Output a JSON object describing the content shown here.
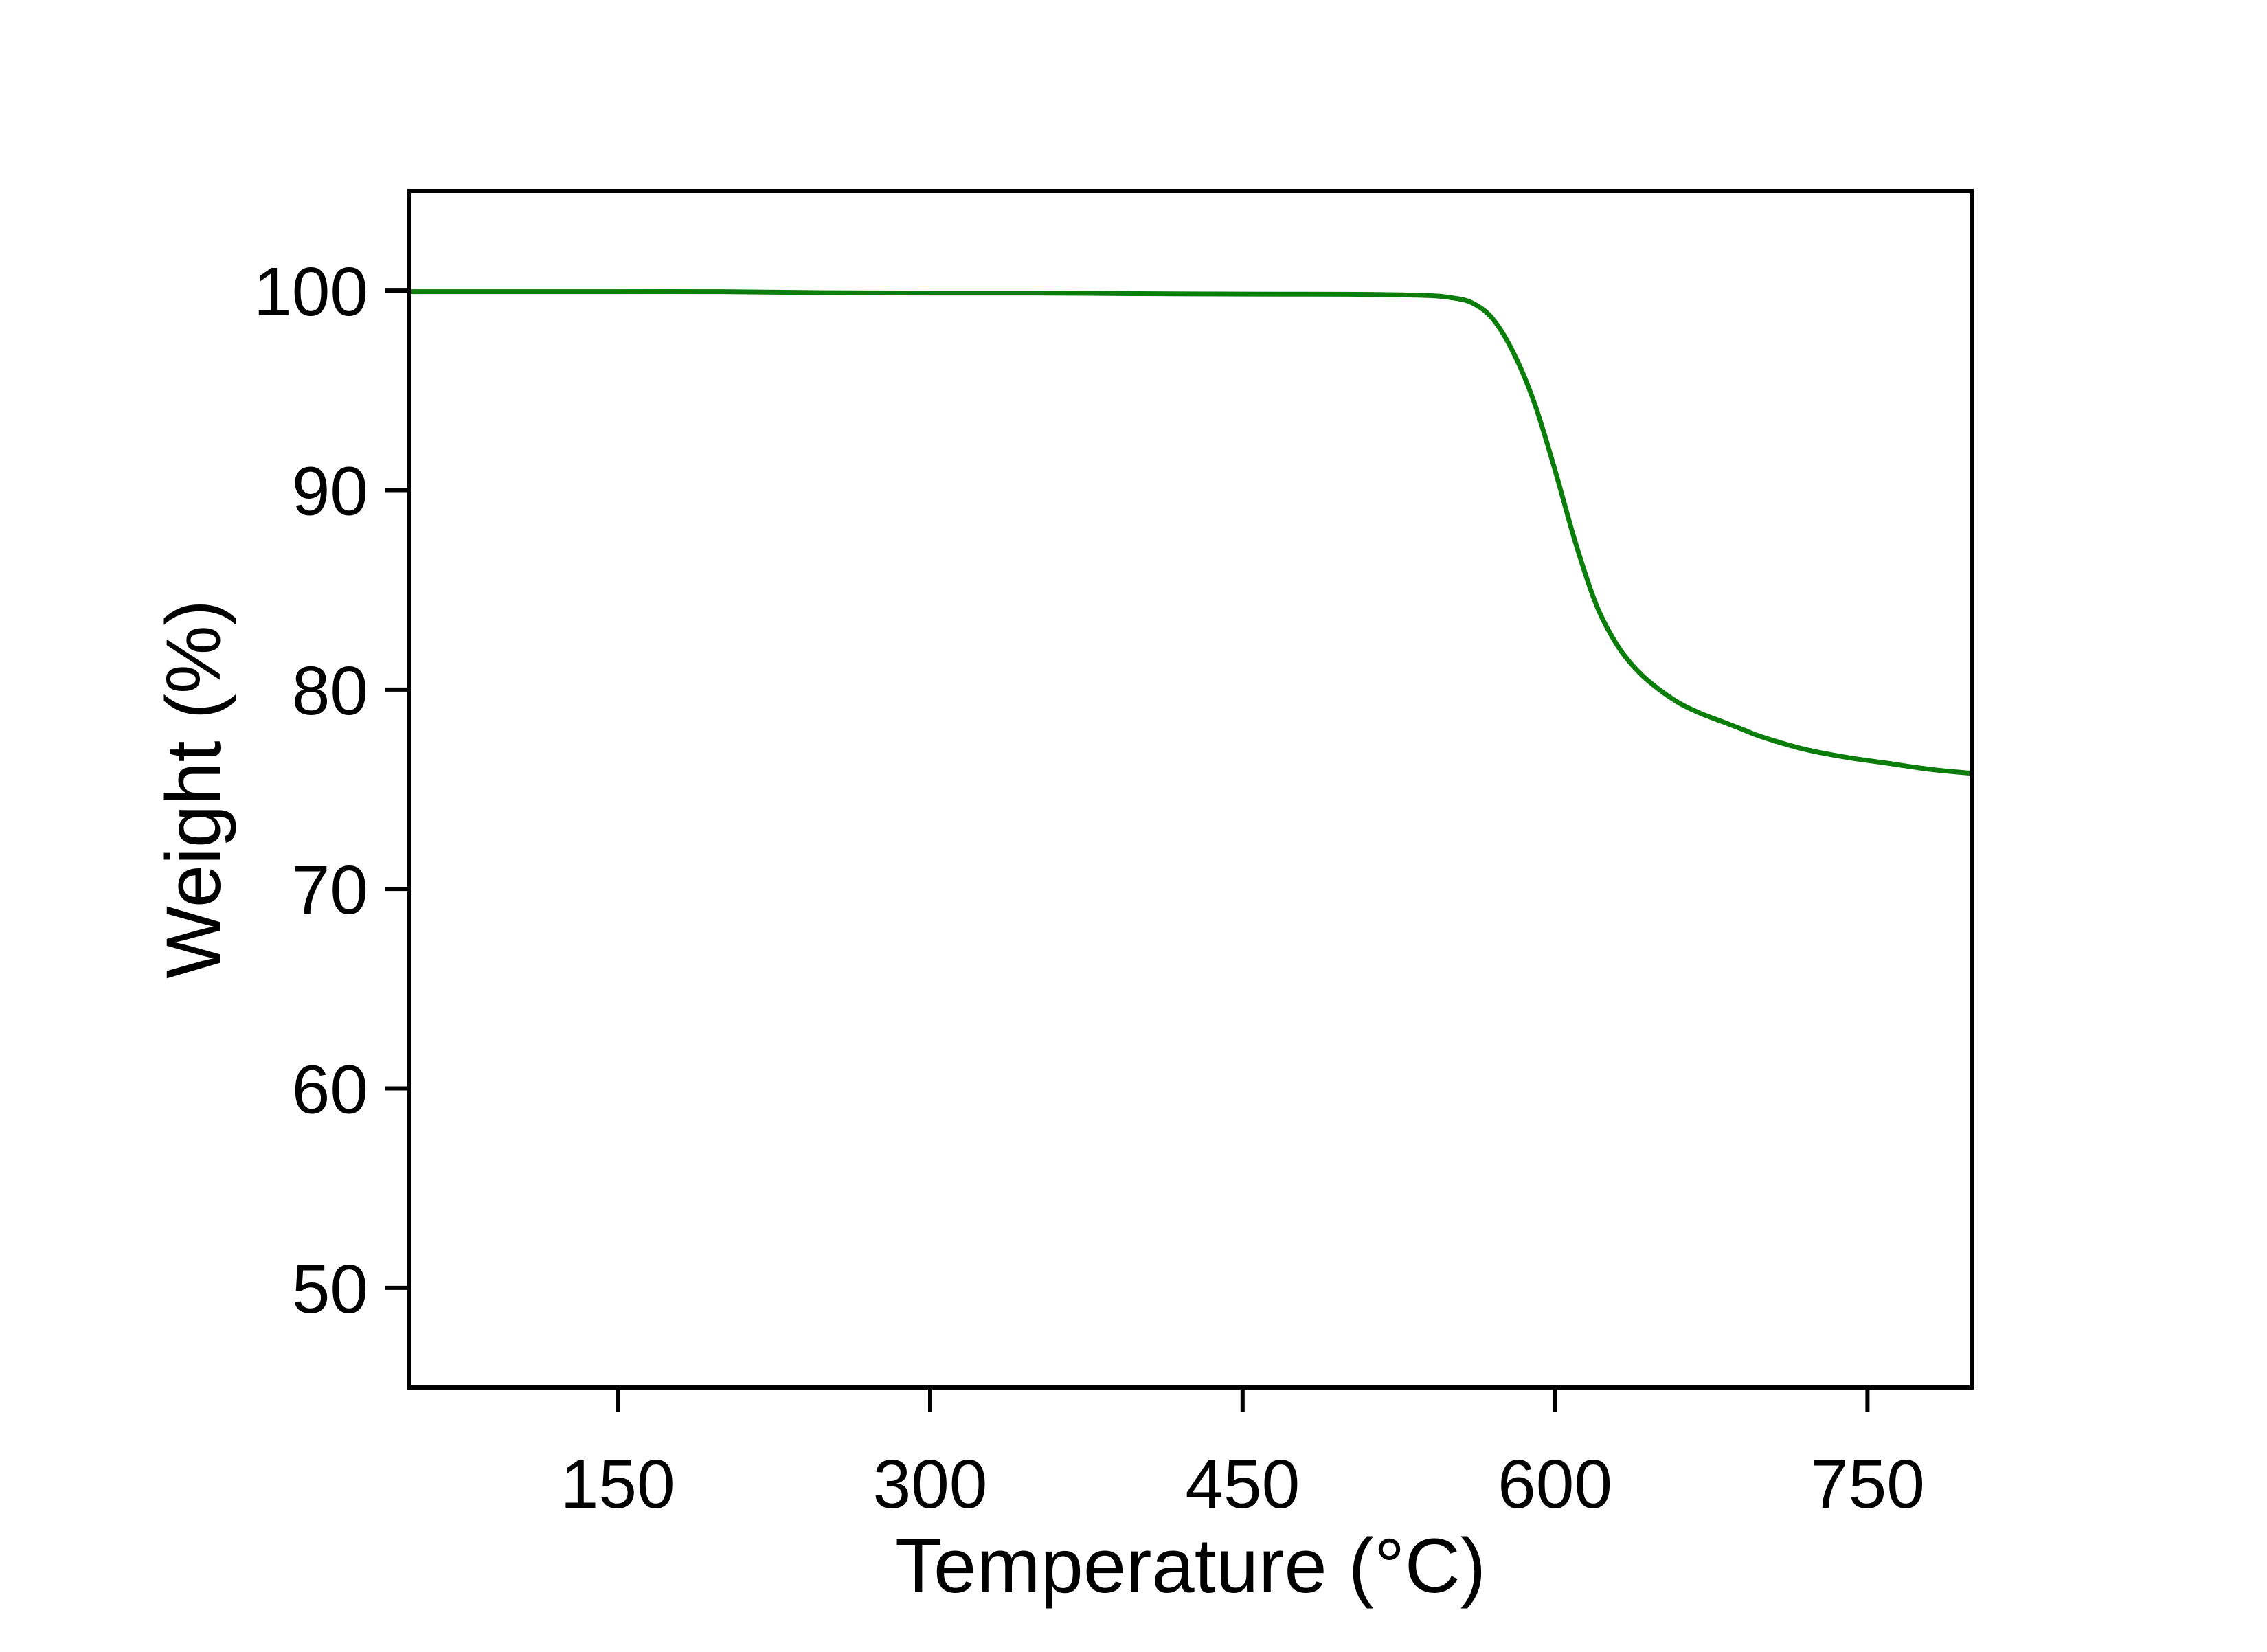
{
  "chart_data": {
    "type": "line",
    "title": "",
    "xlabel": "Temperature (°C)",
    "ylabel": "Weight (%)",
    "xlim": [
      50,
      800
    ],
    "ylim": [
      45,
      105
    ],
    "xticks": [
      150,
      300,
      450,
      600,
      750
    ],
    "yticks": [
      50,
      60,
      70,
      80,
      90,
      100
    ],
    "grid": false,
    "legend": "none",
    "series": [
      {
        "color": "#0a7d0a",
        "x": [
          50,
          100,
          150,
          200,
          250,
          300,
          350,
          400,
          450,
          500,
          520,
          540,
          550,
          560,
          570,
          580,
          590,
          600,
          610,
          620,
          630,
          640,
          650,
          660,
          670,
          680,
          690,
          700,
          720,
          740,
          760,
          780,
          800
        ],
        "y": [
          99.95,
          99.95,
          99.95,
          99.95,
          99.9,
          99.88,
          99.88,
          99.85,
          99.83,
          99.82,
          99.8,
          99.75,
          99.65,
          99.4,
          98.6,
          96.9,
          94.4,
          91.0,
          87.3,
          84.2,
          82.2,
          80.9,
          80.0,
          79.3,
          78.8,
          78.4,
          78.0,
          77.6,
          77.0,
          76.6,
          76.3,
          76.0,
          75.8
        ]
      }
    ]
  }
}
